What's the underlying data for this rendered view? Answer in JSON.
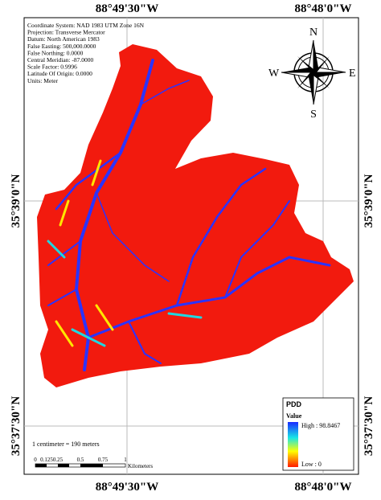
{
  "graticule": {
    "top": [
      "88°49'30\"W",
      "88°48'0\"W"
    ],
    "bottom": [
      "88°49'30\"W",
      "88°48'0\"W"
    ],
    "left": [
      "35°39'0\"N",
      "35°37'30\"N"
    ],
    "right": [
      "35°39'0\"N",
      "35°37'30\"N"
    ]
  },
  "info": {
    "lines": [
      "Coordinate System: NAD 1983 UTM Zone 16N",
      "Projection: Transverse Mercator",
      "Datum: North American 1983",
      "False Easting: 500,000.0000",
      "False Northing: 0.0000",
      "Central Meridian: -87.0000",
      "Scale Factor: 0.9996",
      "Latitude Of Origin: 0.0000",
      "Units: Meter"
    ]
  },
  "compass": {
    "n": "N",
    "s": "S",
    "e": "E",
    "w": "W"
  },
  "legend": {
    "title": "PDD",
    "subtitle": "Value",
    "high": "High : 98.8467",
    "low": "Low : 0"
  },
  "scale": {
    "text": "1 centimeter = 190 meters",
    "labels": [
      "0",
      "0.125",
      "0.25",
      "0.5",
      "0.75",
      "1"
    ],
    "unit": "Kilometers"
  }
}
